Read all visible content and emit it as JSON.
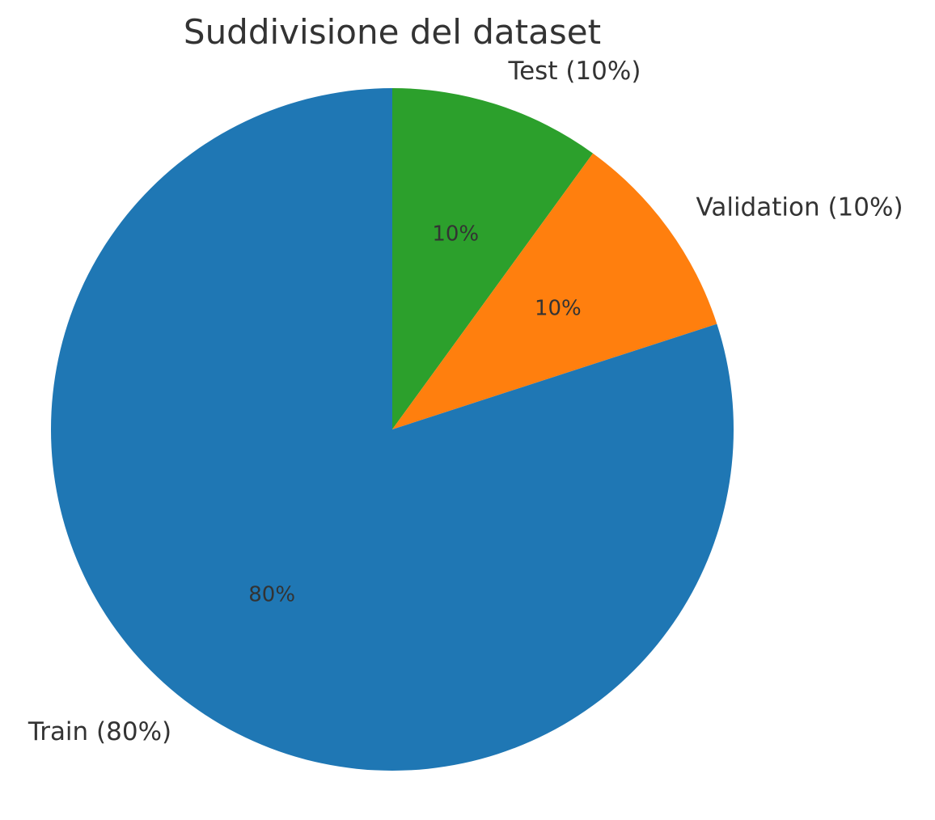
{
  "chart_data": {
    "type": "pie",
    "title": "Suddivisione del dataset",
    "start_angle_deg": 90,
    "direction": "clockwise",
    "slices": [
      {
        "label": "Test (10%)",
        "value": 10,
        "pct_label": "10%",
        "color": "#2ca02c"
      },
      {
        "label": "Validation (10%)",
        "value": 10,
        "pct_label": "10%",
        "color": "#ff7f0e"
      },
      {
        "label": "Train (80%)",
        "value": 80,
        "pct_label": "80%",
        "color": "#1f77b4"
      }
    ]
  }
}
